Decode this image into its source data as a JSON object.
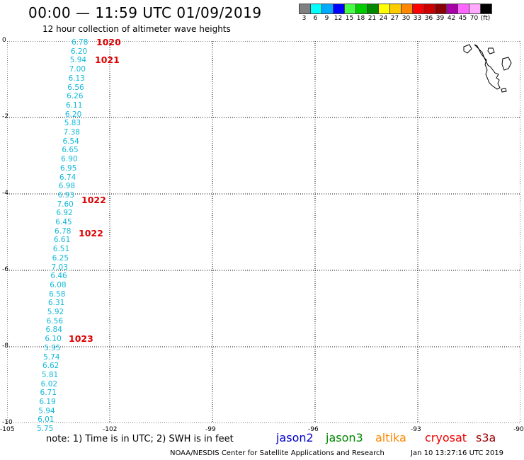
{
  "header": {
    "title": "00:00 — 11:59 UTC 01/09/2019",
    "subtitle": "12 hour collection of altimeter wave heights"
  },
  "scale": {
    "labels": [
      "3",
      "6",
      "9",
      "12",
      "15",
      "18",
      "21",
      "24",
      "27",
      "30",
      "33",
      "36",
      "39",
      "42",
      "45",
      "70",
      "(ft)"
    ],
    "colors": [
      "#808080",
      "#00ffff",
      "#00aaff",
      "#0000ff",
      "#44ff44",
      "#00cc00",
      "#008800",
      "#ffff00",
      "#ffcc00",
      "#ff8800",
      "#ff0000",
      "#cc0000",
      "#880000",
      "#aa00aa",
      "#ff66ff",
      "#ffaaff",
      "#000000"
    ]
  },
  "axes": {
    "x_ticks": [
      "-105",
      "-102",
      "-99",
      "-96",
      "-93",
      "-90"
    ],
    "y_ticks": [
      "0",
      "-2",
      "-4",
      "-6",
      "-8",
      "-10"
    ]
  },
  "track_values": [
    "6.78",
    "6.20",
    "5.94",
    "7.00",
    "6.13",
    "6.56",
    "6.26",
    "6.11",
    "6.20",
    "5.83",
    "7.38",
    "6.54",
    "6.65",
    "6.90",
    "6.95",
    "6.74",
    "6.98",
    "6.93",
    "7.60",
    "6.92",
    "6.45",
    "6.78",
    "6.61",
    "6.51",
    "6.25",
    "7.03",
    "6.46",
    "6.08",
    "6.58",
    "6.31",
    "5.92",
    "6.56",
    "6.84",
    "6.10",
    "5.95",
    "5.74",
    "6.62",
    "5.81",
    "6.02",
    "6.71",
    "6.19",
    "5.94",
    "6.01",
    "5.75"
  ],
  "pass_times": [
    "1020",
    "1021",
    "1022",
    "1022",
    "1023"
  ],
  "footer": {
    "note": "note: 1) Time is in UTC; 2) SWH is in feet",
    "satellites": [
      {
        "name": "jason2",
        "color": "#0000cc"
      },
      {
        "name": "jason3",
        "color": "#008800"
      },
      {
        "name": "altika",
        "color": "#ff8800"
      },
      {
        "name": "cryosat",
        "color": "#ee0000"
      },
      {
        "name": "s3a",
        "color": "#990000"
      }
    ],
    "credit": "NOAA/NESDIS Center for Satellite Applications and Research",
    "timestamp": "Jan 10 13:27:16 UTC 2019"
  }
}
